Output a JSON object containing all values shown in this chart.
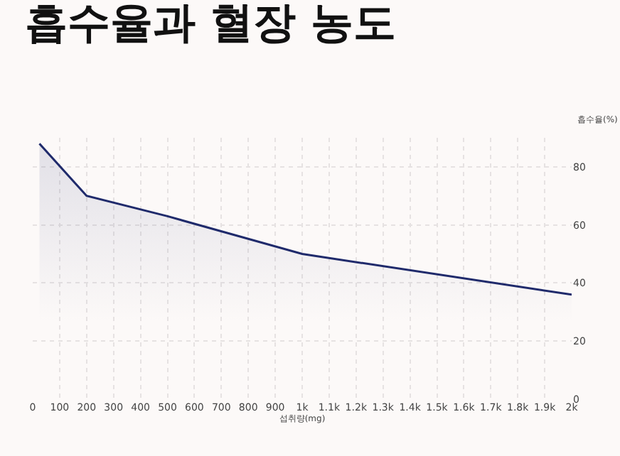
{
  "chart_data": {
    "type": "area",
    "title": "흡수율과 혈장 농도",
    "xlabel": "섭취량(mg)",
    "ylabel": "흡수율(%)",
    "x": [
      25,
      200,
      500,
      1000,
      2000
    ],
    "series": [
      {
        "color": "#1f2a6b",
        "values": [
          88,
          70,
          63,
          50,
          36
        ]
      }
    ],
    "xlim": [
      0,
      2000
    ],
    "xticks": [
      0,
      100,
      200,
      300,
      400,
      500,
      600,
      700,
      800,
      900,
      {
        "value": 1000,
        "label": "1k"
      },
      {
        "value": 1100,
        "label": "1.1k"
      },
      {
        "value": 1200,
        "label": "1.2k"
      },
      {
        "value": 1300,
        "label": "1.3k"
      },
      {
        "value": 1400,
        "label": "1.4k"
      },
      {
        "value": 1500,
        "label": "1.5k"
      },
      {
        "value": 1600,
        "label": "1.6k"
      },
      {
        "value": 1700,
        "label": "1.7k"
      },
      {
        "value": 1800,
        "label": "1.8k"
      },
      {
        "value": 1900,
        "label": "1.9k"
      },
      {
        "value": 2000,
        "label": "2k"
      }
    ],
    "ylim": [
      0,
      90
    ],
    "yticks": [
      0,
      20,
      40,
      60,
      80
    ],
    "grid": true,
    "marker": "none",
    "line_style": "solid"
  }
}
